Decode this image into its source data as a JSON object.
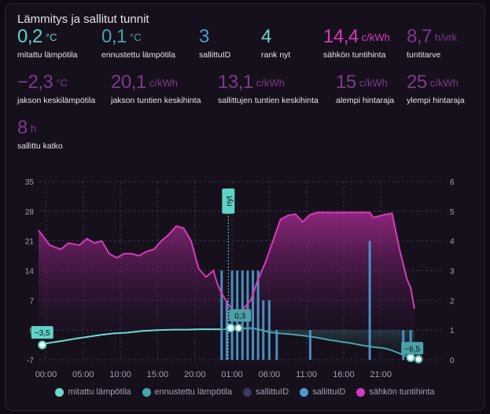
{
  "card": {
    "title": "Lämmitys ja sallitut tunnit"
  },
  "stats": [
    {
      "value": "0,2",
      "unit": "°C",
      "label": "mitattu lämpötila",
      "color": "#5fd4c6"
    },
    {
      "value": "0,1",
      "unit": "°C",
      "label": "ennustettu lämpötila",
      "color": "#4aa3a6"
    },
    {
      "value": "3",
      "unit": "",
      "label": "sallittuID",
      "color": "#4f9bd0"
    },
    {
      "value": "4",
      "unit": "",
      "label": "rank nyt",
      "color": "#6fd9d0"
    },
    {
      "value": "14,4",
      "unit": "c/kWh",
      "label": "sähkön tuntihinta",
      "color": "#d63ab8"
    },
    {
      "value": "8,7",
      "unit": "h/vrk",
      "label": "tuntitarve",
      "color": "#7a3c86"
    },
    {
      "value": "−2,3",
      "unit": "°C",
      "label": "jakson keskilämpötila",
      "color": "#7a3c86"
    },
    {
      "value": "20,1",
      "unit": "c/kWh",
      "label": "jakson tuntien keskihinta",
      "color": "#7a3c86"
    },
    {
      "value": "13,1",
      "unit": "c/kWh",
      "label": "sallittujen tuntien keskihinta",
      "color": "#7a3c86"
    },
    {
      "value": "15",
      "unit": "c/kWh",
      "label": "alempi hintaraja",
      "color": "#7a3c86"
    },
    {
      "value": "25",
      "unit": "c/kWh",
      "label": "ylempi hintaraja",
      "color": "#7a3c86"
    },
    {
      "value": "8",
      "unit": "h",
      "label": "sallittu katko",
      "color": "#7a3c86"
    }
  ],
  "chart_data": {
    "type": "line",
    "x_tick_labels": [
      "00:00",
      "05:00",
      "10:00",
      "15:00",
      "20:00",
      "01:00",
      "06:00",
      "11:00",
      "16:00",
      "21:00"
    ],
    "y_left_ticks": [
      "35",
      "28",
      "21",
      "14",
      "7",
      "0",
      "-7"
    ],
    "y_right_ticks": [
      "6",
      "5",
      "4",
      "3",
      "2",
      "1",
      "0"
    ],
    "y_left_range": [
      -7,
      35
    ],
    "y_right_range": [
      0,
      6
    ],
    "x_range": [
      0,
      54
    ],
    "now_label": "nyt",
    "now_x": 25.5,
    "colors": {
      "price": "#d63ab8",
      "measured": "#6fd9d0",
      "forecast": "#4aa3a6",
      "allowed": "#4f9bd0"
    },
    "series": [
      {
        "name": "sähkön tuntihinta",
        "axis": "left",
        "points": [
          [
            0,
            23.5
          ],
          [
            1.5,
            20
          ],
          [
            3,
            19
          ],
          [
            4,
            20.5
          ],
          [
            5.5,
            20
          ],
          [
            6.5,
            21.5
          ],
          [
            7.5,
            20.5
          ],
          [
            8.5,
            21
          ],
          [
            9.5,
            18
          ],
          [
            10.5,
            17
          ],
          [
            11.5,
            18
          ],
          [
            12.5,
            18
          ],
          [
            13.5,
            17.5
          ],
          [
            14.5,
            18.5
          ],
          [
            15.5,
            19
          ],
          [
            16.5,
            21
          ],
          [
            17.5,
            22.5
          ],
          [
            18.5,
            24.5
          ],
          [
            19.5,
            24
          ],
          [
            20.5,
            21
          ],
          [
            21.5,
            14.5
          ],
          [
            22.5,
            12.5
          ],
          [
            23.5,
            14
          ],
          [
            24,
            11
          ],
          [
            24.5,
            9
          ],
          [
            25.5,
            6
          ],
          [
            26.5,
            4
          ],
          [
            27.5,
            5
          ],
          [
            28.5,
            7
          ],
          [
            29.5,
            12
          ],
          [
            30.5,
            16
          ],
          [
            31.5,
            21
          ],
          [
            32.5,
            26
          ],
          [
            33.5,
            27
          ],
          [
            34.5,
            27.3
          ],
          [
            35.5,
            25.5
          ],
          [
            36.5,
            27.2
          ],
          [
            37.5,
            27.7
          ],
          [
            39,
            27.7
          ],
          [
            41,
            27.7
          ],
          [
            43,
            27.7
          ],
          [
            44.5,
            27.7
          ],
          [
            45,
            26.5
          ],
          [
            46.5,
            27.2
          ],
          [
            47.5,
            27.5
          ],
          [
            48.5,
            19
          ],
          [
            49.5,
            12
          ],
          [
            50,
            10
          ],
          [
            50.5,
            5
          ]
        ]
      },
      {
        "name": "mitattu lämpötila",
        "axis": "left",
        "points": [
          [
            0,
            -3.5
          ],
          [
            1.5,
            -3
          ],
          [
            3,
            -2.6
          ],
          [
            5,
            -2
          ],
          [
            7,
            -1.5
          ],
          [
            8.5,
            -1.1
          ],
          [
            10,
            -0.8
          ],
          [
            12,
            -0.6
          ],
          [
            14,
            -0.2
          ],
          [
            16,
            0
          ],
          [
            18,
            0.1
          ],
          [
            20,
            0.1
          ],
          [
            22,
            0.2
          ],
          [
            24,
            0.2
          ],
          [
            24.5,
            0.2
          ]
        ]
      },
      {
        "name": "ennustettu lämpötila",
        "axis": "left",
        "points": [
          [
            24.5,
            0.1
          ],
          [
            25.5,
            0.3
          ],
          [
            26.5,
            0.2
          ],
          [
            27.5,
            0.4
          ],
          [
            28.5,
            0.5
          ],
          [
            29.5,
            0.2
          ],
          [
            31,
            -0.5
          ],
          [
            32.5,
            -0.8
          ],
          [
            34,
            -1
          ],
          [
            36,
            -1.4
          ],
          [
            37.5,
            -1.8
          ],
          [
            39,
            -2.3
          ],
          [
            40.5,
            -2.7
          ],
          [
            42,
            -3.1
          ],
          [
            43.5,
            -3.6
          ],
          [
            45,
            -4
          ],
          [
            46.5,
            -4.3
          ],
          [
            47.5,
            -4.8
          ],
          [
            48.5,
            -5.5
          ],
          [
            49.5,
            -6.2
          ],
          [
            50.5,
            -6.5
          ]
        ]
      },
      {
        "name": "sallittuID",
        "axis": "right",
        "bars": [
          [
            24.6,
            3
          ],
          [
            25.3,
            2
          ],
          [
            26,
            3
          ],
          [
            26.7,
            3
          ],
          [
            27.4,
            3
          ],
          [
            28.1,
            3
          ],
          [
            28.8,
            3
          ],
          [
            29.5,
            3
          ],
          [
            30.2,
            2
          ],
          [
            31,
            2
          ],
          [
            32,
            1
          ],
          [
            36.5,
            1
          ],
          [
            44.5,
            4
          ],
          [
            49,
            1
          ],
          [
            50,
            1
          ]
        ]
      }
    ],
    "tooltips": [
      {
        "text": "−3,5",
        "x": 0.5,
        "y": -3.5
      },
      {
        "text": "0,3",
        "x": 25.6,
        "y": 0.5
      },
      {
        "text": "−6,5",
        "x": 50,
        "y": -6.5
      }
    ]
  },
  "legend": [
    {
      "label": "mitattu lämpötila",
      "color": "#6fd9d0"
    },
    {
      "label": "ennustettu lämpötila",
      "color": "#4aa3a6"
    },
    {
      "label": "sallittuID",
      "color": "#3b3a5c"
    },
    {
      "label": "sallittuID",
      "color": "#4f9bd0"
    },
    {
      "label": "sähkön tuntihinta",
      "color": "#d63ab8"
    }
  ]
}
